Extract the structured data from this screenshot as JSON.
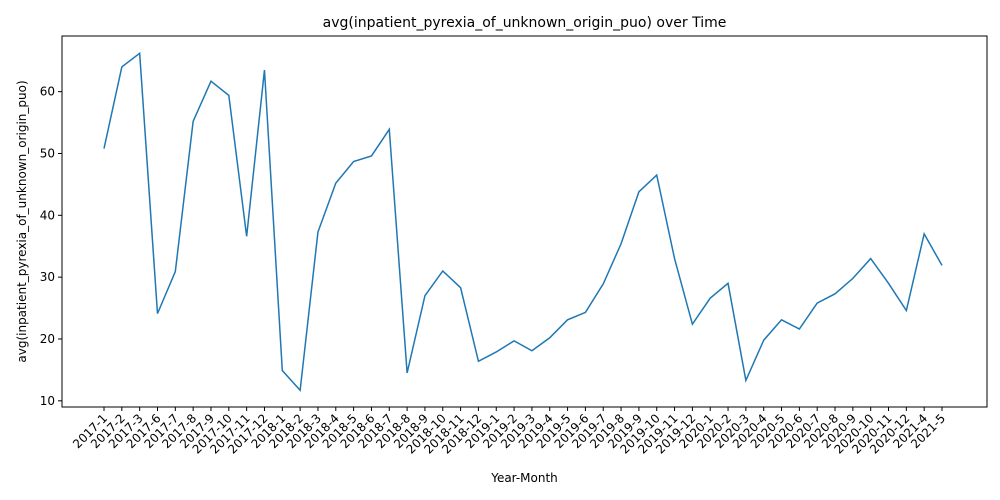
{
  "chart_data": {
    "type": "line",
    "title": "avg(inpatient_pyrexia_of_unknown_origin_puo) over Time",
    "xlabel": "Year-Month",
    "ylabel": "avg(inpatient_pyrexia_of_unknown_origin_puo)",
    "ylim": [
      9,
      69
    ],
    "yticks": [
      10,
      20,
      30,
      40,
      50,
      60
    ],
    "grid": false,
    "line_color": "#1f77b4",
    "categories": [
      "2017-1",
      "2017-2",
      "2017-3",
      "2017-6",
      "2017-7",
      "2017-8",
      "2017-9",
      "2017-10",
      "2017-11",
      "2017-12",
      "2018-1",
      "2018-2",
      "2018-3",
      "2018-4",
      "2018-5",
      "2018-6",
      "2018-7",
      "2018-8",
      "2018-9",
      "2018-10",
      "2018-11",
      "2018-12",
      "2019-1",
      "2019-2",
      "2019-3",
      "2019-4",
      "2019-5",
      "2019-6",
      "2019-7",
      "2019-8",
      "2019-9",
      "2019-10",
      "2019-11",
      "2019-12",
      "2020-1",
      "2020-2",
      "2020-3",
      "2020-4",
      "2020-5",
      "2020-6",
      "2020-7",
      "2020-8",
      "2020-9",
      "2020-10",
      "2020-11",
      "2020-12",
      "2021-4",
      "2021-5"
    ],
    "values": [
      50.8,
      64.0,
      66.2,
      24.1,
      30.9,
      55.2,
      61.7,
      59.4,
      36.6,
      63.5,
      14.9,
      11.7,
      37.3,
      45.2,
      48.7,
      49.6,
      53.9,
      14.5,
      27.0,
      31.0,
      28.3,
      16.4,
      17.9,
      19.7,
      18.1,
      20.2,
      23.1,
      24.3,
      28.9,
      35.4,
      43.8,
      46.5,
      33.0,
      22.4,
      26.6,
      29.0,
      13.3,
      19.8,
      23.1,
      21.6,
      25.8,
      27.3,
      29.8,
      33.0,
      29.0,
      24.6,
      37.0,
      31.9
    ]
  }
}
